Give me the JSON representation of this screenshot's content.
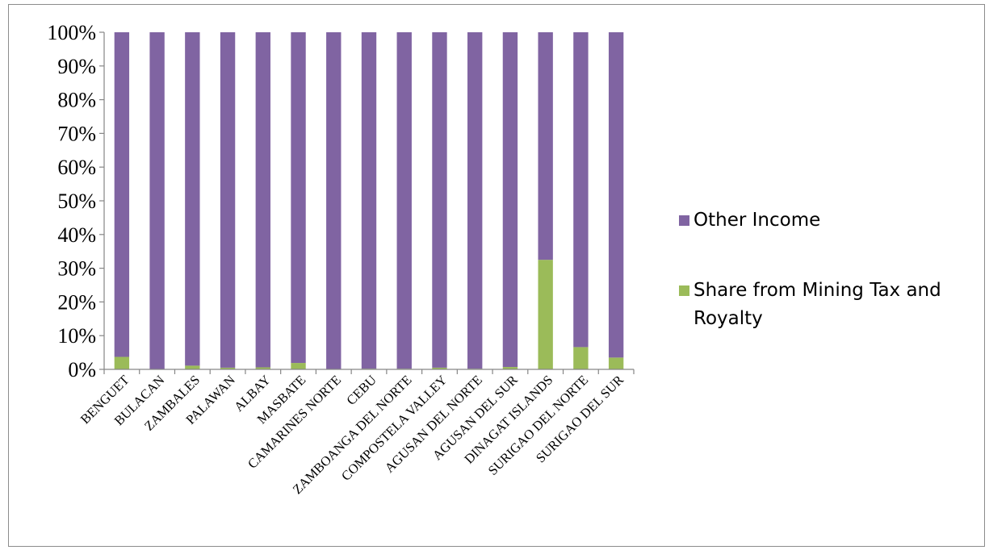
{
  "chart_data": {
    "type": "bar",
    "stacked": "percent",
    "title": "",
    "xlabel": "",
    "ylabel": "",
    "ylim": [
      0,
      100
    ],
    "yticks": [
      "0%",
      "10%",
      "20%",
      "30%",
      "40%",
      "50%",
      "60%",
      "70%",
      "80%",
      "90%",
      "100%"
    ],
    "categories": [
      "BENGUET",
      "BULACAN",
      "ZAMBALES",
      "PALAWAN",
      "ALBAY",
      "MASBATE",
      "CAMARINES NORTE",
      "CEBU",
      "ZAMBOANGA DEL NORTE",
      "COMPOSTELA VALLEY",
      "AGUSAN DEL NORTE",
      "AGUSAN DEL SUR",
      "DINAGAT ISLANDS",
      "SURIGAO DEL NORTE",
      "SURIGAO DEL SUR"
    ],
    "series": [
      {
        "name": "Share from Mining Tax and Royalty",
        "color": "#9bbb59",
        "values": [
          3.7,
          0.1,
          1.1,
          0.5,
          0.6,
          1.9,
          0.1,
          0.2,
          0.2,
          0.5,
          0.2,
          0.7,
          32.5,
          6.6,
          3.5
        ]
      },
      {
        "name": "Other Income",
        "color": "#8064a2",
        "values": [
          96.3,
          99.9,
          98.9,
          99.5,
          99.4,
          98.1,
          99.9,
          99.8,
          99.8,
          99.5,
          99.8,
          99.3,
          67.5,
          93.4,
          96.5
        ]
      }
    ],
    "grid": false,
    "legend": {
      "position": "right",
      "entries": [
        "Other Income",
        "Share from Mining Tax and Royalty"
      ],
      "wrapped_lines": {
        "Other Income": [
          "Other Income"
        ],
        "Share from Mining Tax and Royalty": [
          "Share from Mining Tax and",
          "Royalty"
        ]
      }
    }
  }
}
